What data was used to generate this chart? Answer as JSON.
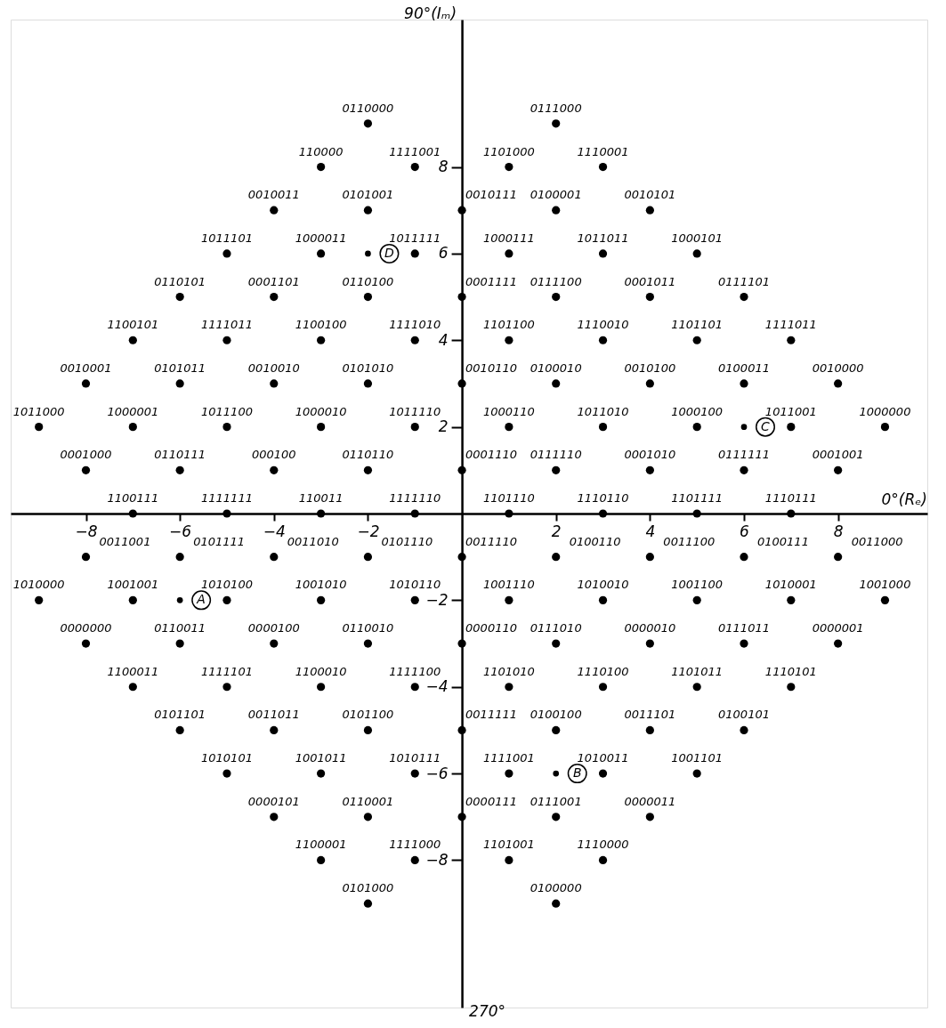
{
  "chart_data": {
    "type": "scatter",
    "xlabel": "0°(Rₑ)",
    "ylabel": "90°(Iₘ)",
    "marker": "circle",
    "xlim": [
      -9.6,
      9.9
    ],
    "ylim": [
      -11.4,
      11.4
    ],
    "xticks": [
      -8,
      -6,
      -4,
      -2,
      2,
      4,
      6,
      8
    ],
    "yticks": [
      -8,
      -6,
      -4,
      -2,
      2,
      4,
      6,
      8
    ],
    "series": [
      {
        "color": "#000000",
        "x": [
          -2,
          2,
          -3,
          -1,
          1,
          3,
          -4,
          -2,
          0,
          2,
          4,
          -5,
          -3,
          -1,
          1,
          3,
          5,
          -6,
          -4,
          -2,
          0,
          2,
          4,
          6,
          -7,
          -5,
          -3,
          -1,
          1,
          3,
          5,
          7,
          -8,
          -6,
          -4,
          -2,
          0,
          2,
          4,
          6,
          8,
          -9,
          -7,
          -5,
          -3,
          -1,
          1,
          3,
          5,
          7,
          9,
          -8,
          -6,
          -4,
          -2,
          0,
          2,
          4,
          6,
          8,
          -7,
          -5,
          -3,
          -1,
          1,
          3,
          5,
          7,
          -8,
          -6,
          -4,
          -2,
          0,
          2,
          4,
          6,
          8,
          -9,
          -7,
          -5,
          -3,
          -1,
          1,
          3,
          5,
          7,
          9,
          -8,
          -6,
          -4,
          -2,
          0,
          2,
          4,
          6,
          8,
          -7,
          -5,
          -3,
          -1,
          1,
          3,
          5,
          7,
          -6,
          -4,
          -2,
          0,
          2,
          4,
          6,
          -5,
          -3,
          -1,
          1,
          3,
          5,
          -4,
          -2,
          0,
          2,
          4,
          -3,
          -1,
          1,
          3,
          -2,
          2
        ],
        "values": [
          9,
          9,
          8,
          8,
          8,
          8,
          7,
          7,
          7,
          7,
          7,
          6,
          6,
          6,
          6,
          6,
          6,
          5,
          5,
          5,
          5,
          5,
          5,
          5,
          4,
          4,
          4,
          4,
          4,
          4,
          4,
          4,
          3,
          3,
          3,
          3,
          3,
          3,
          3,
          3,
          3,
          2,
          2,
          2,
          2,
          2,
          2,
          2,
          2,
          2,
          2,
          1,
          1,
          1,
          1,
          1,
          1,
          1,
          1,
          1,
          0,
          0,
          0,
          0,
          0,
          0,
          0,
          0,
          -1,
          -1,
          -1,
          -1,
          -1,
          -1,
          -1,
          -1,
          -1,
          -2,
          -2,
          -2,
          -2,
          -2,
          -2,
          -2,
          -2,
          -2,
          -2,
          -3,
          -3,
          -3,
          -3,
          -3,
          -3,
          -3,
          -3,
          -3,
          -4,
          -4,
          -4,
          -4,
          -4,
          -4,
          -4,
          -4,
          -5,
          -5,
          -5,
          -5,
          -5,
          -5,
          -5,
          -6,
          -6,
          -6,
          -6,
          -6,
          -6,
          -7,
          -7,
          -7,
          -7,
          -7,
          -8,
          -8,
          -8,
          -8,
          -9,
          -9
        ]
      },
      {
        "color": "#000000",
        "marker": "circle",
        "x": [
          -6,
          2,
          6,
          -2
        ],
        "values": [
          -2,
          -6,
          2,
          6
        ]
      }
    ],
    "annotations": [
      "270°",
      {
        "text": "A",
        "x": -6,
        "y": -2
      },
      {
        "text": "B",
        "x": 2,
        "y": -6
      },
      {
        "text": "C",
        "x": 6,
        "y": 2
      },
      {
        "text": "D",
        "x": -2,
        "y": 6
      },
      {
        "text": "0110000",
        "x": -2,
        "y": 9
      },
      {
        "text": "0111000",
        "x": 2,
        "y": 9
      },
      {
        "text": "110000",
        "x": -3,
        "y": 8
      },
      {
        "text": "1111001",
        "x": -1,
        "y": 8
      },
      {
        "text": "1101000",
        "x": 1,
        "y": 8
      },
      {
        "text": "1110001",
        "x": 3,
        "y": 8
      },
      {
        "text": "0010011",
        "x": -4,
        "y": 7
      },
      {
        "text": "0101001",
        "x": -2,
        "y": 7
      },
      {
        "text": "0010111",
        "x": 0,
        "y": 7
      },
      {
        "text": "0100001",
        "x": 2,
        "y": 7
      },
      {
        "text": "0010101",
        "x": 4,
        "y": 7
      },
      {
        "text": "1011101",
        "x": -5,
        "y": 6
      },
      {
        "text": "1000011",
        "x": -3,
        "y": 6
      },
      {
        "text": "1011111",
        "x": -1,
        "y": 6
      },
      {
        "text": "1000111",
        "x": 1,
        "y": 6
      },
      {
        "text": "1011011",
        "x": 3,
        "y": 6
      },
      {
        "text": "1000101",
        "x": 5,
        "y": 6
      },
      {
        "text": "0110101",
        "x": -6,
        "y": 5
      },
      {
        "text": "0001101",
        "x": -4,
        "y": 5
      },
      {
        "text": "0110100",
        "x": -2,
        "y": 5
      },
      {
        "text": "0001111",
        "x": 0,
        "y": 5
      },
      {
        "text": "0111100",
        "x": 2,
        "y": 5
      },
      {
        "text": "0001011",
        "x": 4,
        "y": 5
      },
      {
        "text": "0111101",
        "x": 6,
        "y": 5
      },
      {
        "text": "1100101",
        "x": -7,
        "y": 4
      },
      {
        "text": "1111011",
        "x": -5,
        "y": 4
      },
      {
        "text": "1100100",
        "x": -3,
        "y": 4
      },
      {
        "text": "1111010",
        "x": -1,
        "y": 4
      },
      {
        "text": "1101100",
        "x": 1,
        "y": 4
      },
      {
        "text": "1110010",
        "x": 3,
        "y": 4
      },
      {
        "text": "1101101",
        "x": 5,
        "y": 4
      },
      {
        "text": "1111011",
        "x": 7,
        "y": 4
      },
      {
        "text": "0010001",
        "x": -8,
        "y": 3
      },
      {
        "text": "0101011",
        "x": -6,
        "y": 3
      },
      {
        "text": "0010010",
        "x": -4,
        "y": 3
      },
      {
        "text": "0101010",
        "x": -2,
        "y": 3
      },
      {
        "text": "0010110",
        "x": 0,
        "y": 3
      },
      {
        "text": "0100010",
        "x": 2,
        "y": 3
      },
      {
        "text": "0010100",
        "x": 4,
        "y": 3
      },
      {
        "text": "0100011",
        "x": 6,
        "y": 3
      },
      {
        "text": "0010000",
        "x": 8,
        "y": 3
      },
      {
        "text": "1011000",
        "x": -9,
        "y": 2
      },
      {
        "text": "1000001",
        "x": -7,
        "y": 2
      },
      {
        "text": "1011100",
        "x": -5,
        "y": 2
      },
      {
        "text": "1000010",
        "x": -3,
        "y": 2
      },
      {
        "text": "1011110",
        "x": -1,
        "y": 2
      },
      {
        "text": "1000110",
        "x": 1,
        "y": 2
      },
      {
        "text": "1011010",
        "x": 3,
        "y": 2
      },
      {
        "text": "1000100",
        "x": 5,
        "y": 2
      },
      {
        "text": "1011001",
        "x": 7,
        "y": 2
      },
      {
        "text": "1000000",
        "x": 9,
        "y": 2
      },
      {
        "text": "0001000",
        "x": -8,
        "y": 1
      },
      {
        "text": "0110111",
        "x": -6,
        "y": 1
      },
      {
        "text": "000100",
        "x": -4,
        "y": 1
      },
      {
        "text": "0110110",
        "x": -2,
        "y": 1
      },
      {
        "text": "0001110",
        "x": 0,
        "y": 1
      },
      {
        "text": "0111110",
        "x": 2,
        "y": 1
      },
      {
        "text": "0001010",
        "x": 4,
        "y": 1
      },
      {
        "text": "0111111",
        "x": 6,
        "y": 1
      },
      {
        "text": "0001001",
        "x": 8,
        "y": 1
      },
      {
        "text": "1100111",
        "x": -7,
        "y": 0
      },
      {
        "text": "1111111",
        "x": -5,
        "y": 0
      },
      {
        "text": "110011",
        "x": -3,
        "y": 0
      },
      {
        "text": "1111110",
        "x": -1,
        "y": 0
      },
      {
        "text": "1101110",
        "x": 1,
        "y": 0
      },
      {
        "text": "1110110",
        "x": 3,
        "y": 0
      },
      {
        "text": "1101111",
        "x": 5,
        "y": 0
      },
      {
        "text": "1110111",
        "x": 7,
        "y": 0
      },
      {
        "text": "0011001",
        "x": -8,
        "y": -1
      },
      {
        "text": "0101111",
        "x": -6,
        "y": -1
      },
      {
        "text": "0011010",
        "x": -4,
        "y": -1
      },
      {
        "text": "0101110",
        "x": -2,
        "y": -1
      },
      {
        "text": "0011110",
        "x": 0,
        "y": -1
      },
      {
        "text": "0100110",
        "x": 2,
        "y": -1
      },
      {
        "text": "0011100",
        "x": 4,
        "y": -1
      },
      {
        "text": "0100111",
        "x": 6,
        "y": -1
      },
      {
        "text": "0011000",
        "x": 8,
        "y": -1
      },
      {
        "text": "1010000",
        "x": -9,
        "y": -2
      },
      {
        "text": "1001001",
        "x": -7,
        "y": -2
      },
      {
        "text": "1010100",
        "x": -5,
        "y": -2
      },
      {
        "text": "1001010",
        "x": -3,
        "y": -2
      },
      {
        "text": "1010110",
        "x": -1,
        "y": -2
      },
      {
        "text": "1001110",
        "x": 1,
        "y": -2
      },
      {
        "text": "1010010",
        "x": 3,
        "y": -2
      },
      {
        "text": "1001100",
        "x": 5,
        "y": -2
      },
      {
        "text": "1010001",
        "x": 7,
        "y": -2
      },
      {
        "text": "1001000",
        "x": 9,
        "y": -2
      },
      {
        "text": "0000000",
        "x": -8,
        "y": -3
      },
      {
        "text": "0110011",
        "x": -6,
        "y": -3
      },
      {
        "text": "0000100",
        "x": -4,
        "y": -3
      },
      {
        "text": "0110010",
        "x": -2,
        "y": -3
      },
      {
        "text": "0000110",
        "x": 0,
        "y": -3
      },
      {
        "text": "0111010",
        "x": 2,
        "y": -3
      },
      {
        "text": "0000010",
        "x": 4,
        "y": -3
      },
      {
        "text": "0111011",
        "x": 6,
        "y": -3
      },
      {
        "text": "0000001",
        "x": 8,
        "y": -3
      },
      {
        "text": "1100011",
        "x": -7,
        "y": -4
      },
      {
        "text": "1111101",
        "x": -5,
        "y": -4
      },
      {
        "text": "1100010",
        "x": -3,
        "y": -4
      },
      {
        "text": "1111100",
        "x": -1,
        "y": -4
      },
      {
        "text": "1101010",
        "x": 1,
        "y": -4
      },
      {
        "text": "1110100",
        "x": 3,
        "y": -4
      },
      {
        "text": "1101011",
        "x": 5,
        "y": -4
      },
      {
        "text": "1110101",
        "x": 7,
        "y": -4
      },
      {
        "text": "0101101",
        "x": -6,
        "y": -5
      },
      {
        "text": "0011011",
        "x": -4,
        "y": -5
      },
      {
        "text": "0101100",
        "x": -2,
        "y": -5
      },
      {
        "text": "0011111",
        "x": 0,
        "y": -5
      },
      {
        "text": "0100100",
        "x": 2,
        "y": -5
      },
      {
        "text": "0011101",
        "x": 4,
        "y": -5
      },
      {
        "text": "0100101",
        "x": 6,
        "y": -5
      },
      {
        "text": "1010101",
        "x": -5,
        "y": -6
      },
      {
        "text": "1001011",
        "x": -3,
        "y": -6
      },
      {
        "text": "1010111",
        "x": -1,
        "y": -6
      },
      {
        "text": "1111001",
        "x": 1,
        "y": -6
      },
      {
        "text": "1010011",
        "x": 3,
        "y": -6
      },
      {
        "text": "1001101",
        "x": 5,
        "y": -6
      },
      {
        "text": "0000101",
        "x": -4,
        "y": -7
      },
      {
        "text": "0110001",
        "x": -2,
        "y": -7
      },
      {
        "text": "0000111",
        "x": 0,
        "y": -7
      },
      {
        "text": "0111001",
        "x": 2,
        "y": -7
      },
      {
        "text": "0000011",
        "x": 4,
        "y": -7
      },
      {
        "text": "1100001",
        "x": -3,
        "y": -8
      },
      {
        "text": "1111000",
        "x": -1,
        "y": -8
      },
      {
        "text": "1101001",
        "x": 1,
        "y": -8
      },
      {
        "text": "1110000",
        "x": 3,
        "y": -8
      },
      {
        "text": "0101000",
        "x": -2,
        "y": -9
      },
      {
        "text": "0100000",
        "x": 2,
        "y": -9
      }
    ]
  }
}
